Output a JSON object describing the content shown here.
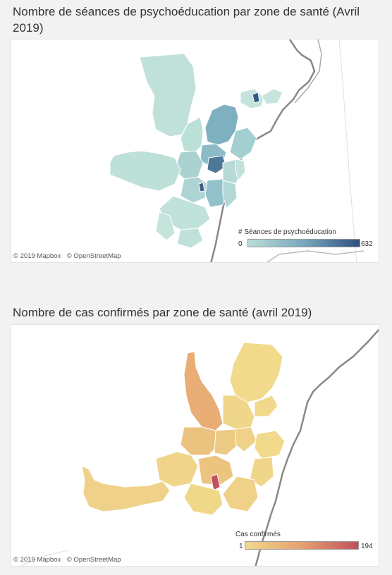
{
  "map1": {
    "title": "Nombre de séances de psychoéducation par zone de santé (Avril 2019)",
    "legend": {
      "title": "# Séances de psychoéducation",
      "min": "0",
      "max": "632",
      "color_low": "#b9ddd5",
      "color_high": "#2f4f7e"
    },
    "attribution": [
      "© 2019 Mapbox",
      "© OpenStreetMap"
    ]
  },
  "map2": {
    "title": "Nombre de cas confirmés par zone de santé (avril 2019)",
    "legend": {
      "title": "Cas confirmés",
      "min": "1",
      "max": "194",
      "color_low": "#efd98b",
      "color_high": "#c0515e"
    },
    "attribution": [
      "© 2019 Mapbox",
      "© OpenStreetMap"
    ]
  }
}
